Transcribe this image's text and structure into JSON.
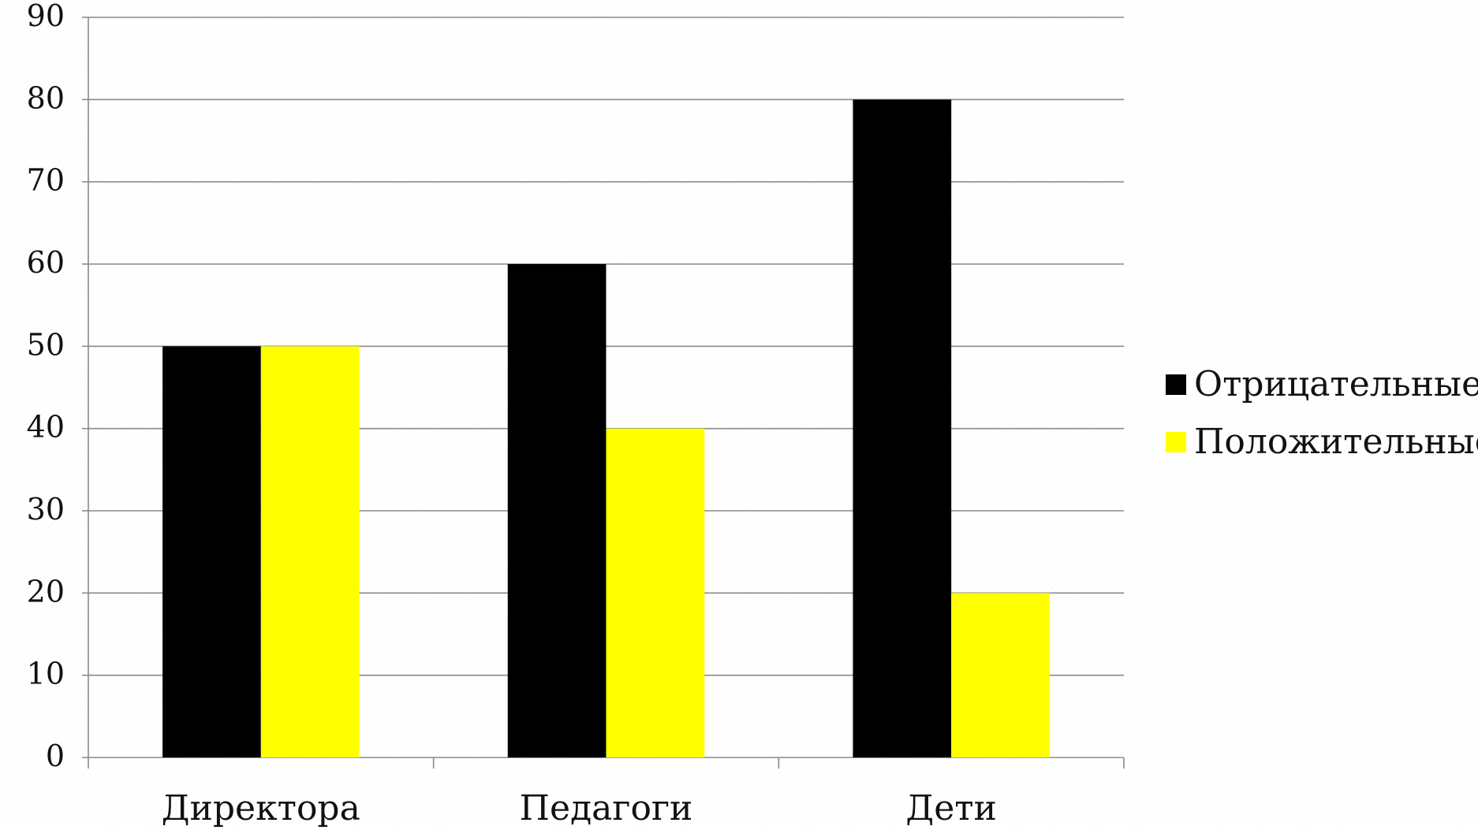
{
  "chart_data": {
    "type": "bar",
    "categories": [
      "Директора",
      "Педагоги",
      "Дети"
    ],
    "series": [
      {
        "name": "Отрицательные",
        "values": [
          50,
          60,
          80
        ],
        "color": "#000000"
      },
      {
        "name": "Положительные",
        "values": [
          50,
          40,
          20
        ],
        "color": "#ffff00"
      }
    ],
    "title": "",
    "xlabel": "",
    "ylabel": "",
    "ylim": [
      0,
      90
    ],
    "yticks": [
      "0",
      "10",
      "20",
      "30",
      "40",
      "50",
      "60",
      "70",
      "80",
      "90"
    ],
    "grid": true,
    "legend_position": "right"
  }
}
